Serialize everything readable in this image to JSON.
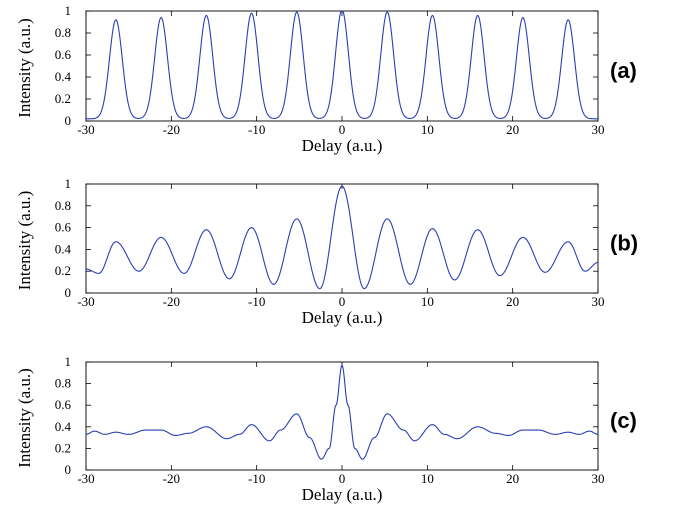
{
  "chart_data": [
    {
      "type": "line",
      "panel_label": "(a)",
      "xlabel": "Delay (a.u.)",
      "ylabel": "Intensity (a.u.)",
      "xlim": [
        -30,
        30
      ],
      "ylim": [
        0,
        1
      ],
      "xticks": [
        -30,
        -20,
        -10,
        0,
        10,
        20,
        30
      ],
      "yticks": [
        0,
        0.2,
        0.4,
        0.6,
        0.8,
        1
      ],
      "ytick_labels": [
        "0",
        "0.2",
        "0.4",
        "0.6",
        "0.8",
        "1"
      ],
      "line_color": "#2b3fb5",
      "peak_width": 0.75,
      "peaks": [
        {
          "x": -26.5,
          "y": 0.9
        },
        {
          "x": -21.2,
          "y": 0.92
        },
        {
          "x": -15.9,
          "y": 0.94
        },
        {
          "x": -10.6,
          "y": 0.96
        },
        {
          "x": -5.3,
          "y": 0.97
        },
        {
          "x": 0,
          "y": 0.99
        },
        {
          "x": 5.3,
          "y": 0.97
        },
        {
          "x": 10.6,
          "y": 0.94
        },
        {
          "x": 15.9,
          "y": 0.94
        },
        {
          "x": 21.2,
          "y": 0.92
        },
        {
          "x": 26.5,
          "y": 0.9
        }
      ]
    },
    {
      "type": "line",
      "panel_label": "(b)",
      "xlabel": "Delay (a.u.)",
      "ylabel": "Intensity (a.u.)",
      "xlim": [
        -30,
        30
      ],
      "ylim": [
        0,
        1
      ],
      "xticks": [
        -30,
        -20,
        -10,
        0,
        10,
        20,
        30
      ],
      "yticks": [
        0,
        0.2,
        0.4,
        0.6,
        0.8,
        1
      ],
      "ytick_labels": [
        "0",
        "0.2",
        "0.4",
        "0.6",
        "0.8",
        "1"
      ],
      "line_color": "#2b3fb5",
      "peak_width": 1.6,
      "center_width": 0.8,
      "baseline_points": [
        {
          "x": -30,
          "y": 0.22
        },
        {
          "x": -28.5,
          "y": 0.18
        },
        {
          "x": -26.5,
          "y": 0.47
        },
        {
          "x": -23.8,
          "y": 0.2
        },
        {
          "x": -21.2,
          "y": 0.51
        },
        {
          "x": -18.5,
          "y": 0.18
        },
        {
          "x": -15.9,
          "y": 0.58
        },
        {
          "x": -13.2,
          "y": 0.13
        },
        {
          "x": -10.6,
          "y": 0.6
        },
        {
          "x": -8,
          "y": 0.08
        },
        {
          "x": -5.3,
          "y": 0.68
        },
        {
          "x": -2.6,
          "y": 0.04
        },
        {
          "x": 0,
          "y": 0.98
        },
        {
          "x": 2.6,
          "y": 0.04
        },
        {
          "x": 5.3,
          "y": 0.68
        },
        {
          "x": 8,
          "y": 0.08
        },
        {
          "x": 10.6,
          "y": 0.59
        },
        {
          "x": 13.2,
          "y": 0.12
        },
        {
          "x": 15.9,
          "y": 0.58
        },
        {
          "x": 18.5,
          "y": 0.16
        },
        {
          "x": 21.2,
          "y": 0.51
        },
        {
          "x": 23.8,
          "y": 0.19
        },
        {
          "x": 26.5,
          "y": 0.47
        },
        {
          "x": 28.5,
          "y": 0.2
        },
        {
          "x": 30,
          "y": 0.28
        }
      ]
    },
    {
      "type": "line",
      "panel_label": "(c)",
      "xlabel": "Delay (a.u.)",
      "ylabel": "Intensity (a.u.)",
      "xlim": [
        -30,
        30
      ],
      "ylim": [
        0,
        1
      ],
      "xticks": [
        -30,
        -20,
        -10,
        0,
        10,
        20,
        30
      ],
      "yticks": [
        0,
        0.2,
        0.4,
        0.6,
        0.8,
        1
      ],
      "ytick_labels": [
        "0",
        "0.2",
        "0.4",
        "0.6",
        "0.8",
        "1"
      ],
      "line_color": "#2b3fb5",
      "baseline_points": [
        {
          "x": -30,
          "y": 0.33
        },
        {
          "x": -29,
          "y": 0.36
        },
        {
          "x": -27.8,
          "y": 0.33
        },
        {
          "x": -26.5,
          "y": 0.35
        },
        {
          "x": -25,
          "y": 0.33
        },
        {
          "x": -23,
          "y": 0.37
        },
        {
          "x": -21.2,
          "y": 0.37
        },
        {
          "x": -19.5,
          "y": 0.32
        },
        {
          "x": -18,
          "y": 0.34
        },
        {
          "x": -15.9,
          "y": 0.4
        },
        {
          "x": -13.5,
          "y": 0.29
        },
        {
          "x": -12,
          "y": 0.33
        },
        {
          "x": -10.6,
          "y": 0.42
        },
        {
          "x": -8.5,
          "y": 0.27
        },
        {
          "x": -7.2,
          "y": 0.37
        },
        {
          "x": -5.3,
          "y": 0.52
        },
        {
          "x": -3.8,
          "y": 0.3
        },
        {
          "x": -2.4,
          "y": 0.1
        },
        {
          "x": -1.5,
          "y": 0.2
        },
        {
          "x": -0.7,
          "y": 0.6
        },
        {
          "x": 0,
          "y": 0.97
        },
        {
          "x": 0.7,
          "y": 0.6
        },
        {
          "x": 1.5,
          "y": 0.2
        },
        {
          "x": 2.4,
          "y": 0.1
        },
        {
          "x": 3.8,
          "y": 0.3
        },
        {
          "x": 5.3,
          "y": 0.52
        },
        {
          "x": 7.2,
          "y": 0.37
        },
        {
          "x": 8.5,
          "y": 0.27
        },
        {
          "x": 10.6,
          "y": 0.42
        },
        {
          "x": 12,
          "y": 0.33
        },
        {
          "x": 13.5,
          "y": 0.29
        },
        {
          "x": 15.9,
          "y": 0.4
        },
        {
          "x": 18,
          "y": 0.34
        },
        {
          "x": 19.5,
          "y": 0.32
        },
        {
          "x": 21.2,
          "y": 0.37
        },
        {
          "x": 23,
          "y": 0.37
        },
        {
          "x": 25,
          "y": 0.33
        },
        {
          "x": 26.5,
          "y": 0.35
        },
        {
          "x": 27.8,
          "y": 0.33
        },
        {
          "x": 29,
          "y": 0.36
        },
        {
          "x": 30,
          "y": 0.33
        }
      ]
    }
  ]
}
